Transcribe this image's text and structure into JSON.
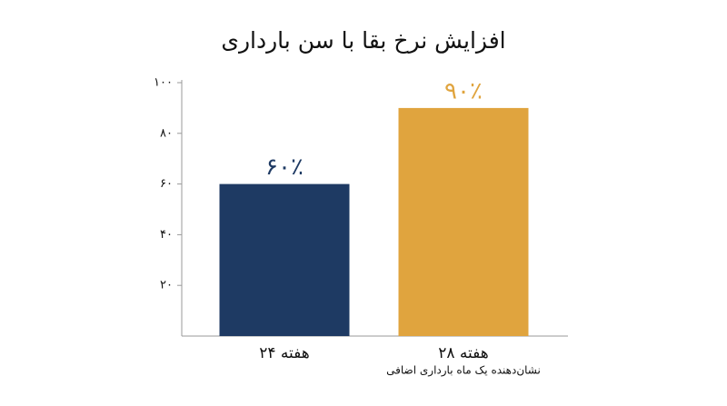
{
  "chart_data": {
    "type": "bar",
    "title": "افزایش نرخ بقا با سن بارداری",
    "categories": [
      "۲۴ هفته",
      "۲۸ هفته"
    ],
    "values": [
      60,
      90
    ],
    "value_labels": [
      "۶۰٪",
      "۹۰٪"
    ],
    "colors": [
      "#1e3a63",
      "#e0a43e"
    ],
    "annotation": "نشان‌دهنده یک ماه بارداری اضافی",
    "ylim": [
      0,
      100
    ],
    "yticks": [
      {
        "value": 20,
        "label": "۲۰"
      },
      {
        "value": 40,
        "label": "۴۰"
      },
      {
        "value": 60,
        "label": "۶۰"
      },
      {
        "value": 80,
        "label": "۸۰"
      },
      {
        "value": 100,
        "label": "۱۰۰"
      }
    ]
  }
}
